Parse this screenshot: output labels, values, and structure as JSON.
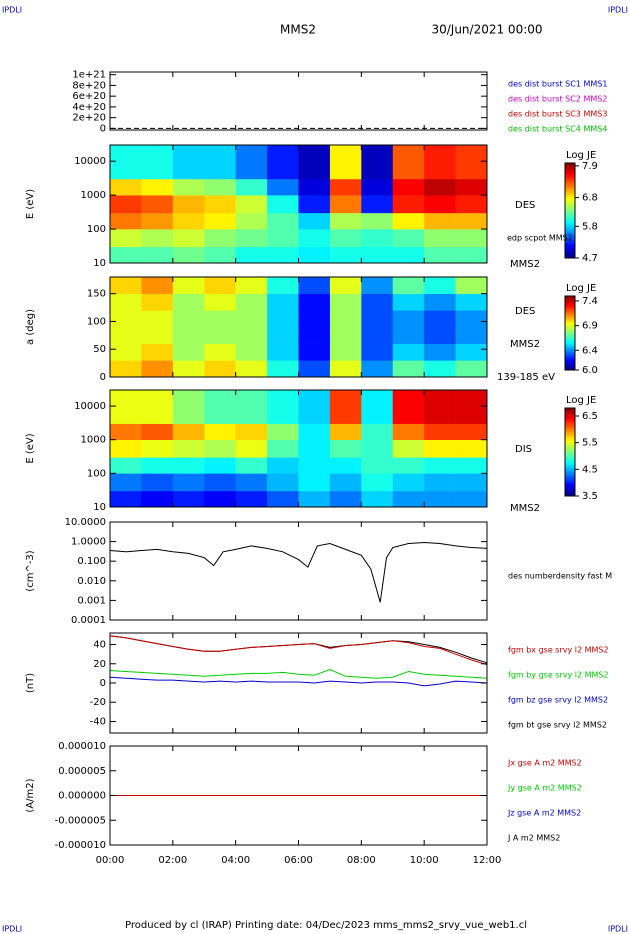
{
  "header": {
    "corner": "IPDLI",
    "title": "MMS2",
    "date": "30/Jun/2021 00:00"
  },
  "footer": "Produced by cl (IRAP)   Printing date: 04/Dec/2023   mms_mms2_srvy_vue_web1.cl",
  "chart_data": [
    {
      "type": "line",
      "ylim": [
        -3e+19,
        1.05e+21
      ],
      "yticks": [
        0,
        {
          "value": 2e+20,
          "label": "2e+20"
        },
        {
          "value": 4e+20,
          "label": "4e+20"
        },
        {
          "value": 6e+20,
          "label": "6e+20"
        },
        {
          "value": 8e+20,
          "label": "8e+20"
        },
        {
          "value": 1e+21,
          "label": "1e+21"
        }
      ],
      "series": [
        {
          "name": "des dist burst SC1 MMS1",
          "color": "#0000cc"
        },
        {
          "name": "des dist burst SC2 MMS2",
          "color": "#cc00cc"
        },
        {
          "name": "des dist burst SC3 MMS3",
          "color": "#cc0000"
        },
        {
          "name": "des dist burst SC4 MMS4",
          "color": "#00bb00"
        }
      ]
    },
    {
      "type": "heatmap",
      "y_label": "E (eV)",
      "log_y": true,
      "ylim": [
        10,
        30000
      ],
      "yticks": [
        10,
        100,
        1000,
        10000
      ],
      "x_edges": [
        0,
        1,
        2,
        3,
        4,
        5,
        6,
        7,
        8,
        9,
        10,
        11,
        12
      ],
      "y_edges": [
        10,
        30,
        100,
        300,
        1000,
        3000,
        30000
      ],
      "values": [
        [
          6.2,
          6.2,
          6.3,
          6.2,
          6.0,
          6.0,
          5.9,
          6.0,
          6.0,
          6.0,
          6.2,
          6.2
        ],
        [
          6.6,
          6.5,
          6.6,
          6.4,
          6.3,
          6.2,
          6.0,
          6.2,
          6.1,
          6.2,
          6.4,
          6.4
        ],
        [
          7.2,
          7.1,
          6.9,
          6.8,
          6.5,
          6.2,
          5.8,
          6.5,
          6.4,
          6.8,
          7.0,
          7.0
        ],
        [
          7.4,
          7.3,
          7.0,
          6.9,
          6.6,
          6.0,
          5.2,
          7.2,
          5.2,
          7.5,
          7.6,
          7.5
        ],
        [
          6.9,
          6.8,
          6.5,
          6.4,
          6.1,
          5.5,
          5.0,
          7.4,
          5.0,
          7.6,
          7.8,
          7.7
        ],
        [
          6.0,
          6.0,
          5.8,
          5.8,
          5.5,
          5.2,
          4.9,
          6.8,
          4.9,
          7.3,
          7.5,
          7.4
        ]
      ],
      "colorbar_title": "Log JE",
      "clim": [
        4.7,
        8.0
      ],
      "cticks": [
        4.7,
        5.8,
        6.8,
        7.9
      ],
      "annotations": [
        "DES",
        "edp scpot MMS2",
        "MMS2"
      ]
    },
    {
      "type": "heatmap",
      "y_label": "a (deg)",
      "ylim": [
        0,
        180
      ],
      "yticks": [
        0,
        50,
        100,
        150
      ],
      "x_edges": [
        0,
        1,
        2,
        3,
        4,
        5,
        6,
        7,
        8,
        9,
        10,
        11,
        12
      ],
      "y_edges": [
        0,
        30,
        60,
        90,
        120,
        150,
        180
      ],
      "values": [
        [
          7.0,
          7.1,
          6.9,
          7.0,
          6.9,
          6.6,
          6.3,
          6.9,
          6.4,
          6.7,
          6.6,
          6.7
        ],
        [
          6.9,
          7.0,
          6.8,
          6.9,
          6.8,
          6.5,
          6.2,
          6.8,
          6.3,
          6.5,
          6.4,
          6.5
        ],
        [
          6.9,
          6.9,
          6.8,
          6.8,
          6.8,
          6.5,
          6.2,
          6.8,
          6.3,
          6.4,
          6.3,
          6.4
        ],
        [
          6.9,
          6.9,
          6.8,
          6.8,
          6.8,
          6.5,
          6.2,
          6.8,
          6.3,
          6.4,
          6.3,
          6.4
        ],
        [
          6.9,
          7.0,
          6.8,
          6.9,
          6.8,
          6.5,
          6.2,
          6.8,
          6.3,
          6.5,
          6.4,
          6.5
        ],
        [
          7.0,
          7.1,
          6.9,
          7.0,
          6.9,
          6.6,
          6.3,
          6.9,
          6.4,
          6.7,
          6.6,
          6.8
        ]
      ],
      "colorbar_title": "Log JE",
      "clim": [
        6.0,
        7.5
      ],
      "cticks": [
        {
          "value": 6,
          "label": "6.0"
        },
        6.4,
        6.9,
        7.4
      ],
      "annotations": [
        "DES",
        "MMS2",
        "139-185 eV"
      ]
    },
    {
      "type": "heatmap",
      "y_label": "E (eV)",
      "log_y": true,
      "ylim": [
        10,
        30000
      ],
      "yticks": [
        10,
        100,
        1000,
        10000
      ],
      "x_edges": [
        0,
        1,
        2,
        3,
        4,
        5,
        6,
        7,
        8,
        9,
        10,
        11,
        12
      ],
      "y_edges": [
        10,
        30,
        100,
        300,
        1000,
        3000,
        30000
      ],
      "values": [
        [
          4.0,
          3.9,
          4.0,
          3.9,
          4.0,
          4.2,
          4.5,
          4.3,
          4.6,
          4.4,
          4.4,
          4.4
        ],
        [
          4.3,
          4.2,
          4.3,
          4.2,
          4.3,
          4.5,
          4.7,
          4.5,
          4.8,
          4.6,
          4.5,
          4.5
        ],
        [
          4.9,
          4.8,
          4.8,
          4.7,
          4.9,
          4.6,
          4.7,
          4.7,
          4.9,
          4.9,
          4.8,
          4.8
        ],
        [
          5.6,
          5.5,
          5.4,
          5.3,
          5.5,
          5.0,
          4.7,
          5.0,
          4.9,
          5.4,
          5.6,
          5.6
        ],
        [
          6.0,
          6.1,
          5.8,
          5.6,
          5.7,
          5.2,
          4.7,
          5.8,
          4.9,
          6.0,
          6.2,
          6.2
        ],
        [
          5.5,
          5.5,
          5.2,
          5.0,
          5.0,
          4.8,
          4.6,
          6.2,
          4.7,
          6.4,
          6.5,
          6.5
        ]
      ],
      "colorbar_title": "Log JE",
      "clim": [
        3.5,
        6.8
      ],
      "cticks": [
        3.5,
        4.5,
        5.5,
        6.5
      ],
      "annotations": [
        "DIS",
        "MMS2"
      ]
    },
    {
      "type": "line",
      "y_label": "(cm^-3)",
      "log_y": true,
      "ylim": [
        0.0001,
        10
      ],
      "yticks": [
        {
          "value": 0.0001,
          "label": "0.0001"
        },
        {
          "value": 0.001,
          "label": "0.001"
        },
        {
          "value": 0.01,
          "label": "0.010"
        },
        {
          "value": 0.1,
          "label": "0.100"
        },
        {
          "value": 1,
          "label": "1.0000"
        },
        {
          "value": 10,
          "label": "10.0000"
        }
      ],
      "x": [
        0,
        0.5,
        1,
        1.5,
        2,
        2.5,
        3,
        3.3,
        3.6,
        4,
        4.5,
        5,
        5.5,
        6,
        6.3,
        6.6,
        7,
        7.5,
        8,
        8.3,
        8.6,
        8.8,
        9,
        9.5,
        10,
        10.5,
        11,
        11.5,
        12
      ],
      "series": [
        {
          "color": "#000000",
          "values": [
            0.35,
            0.3,
            0.35,
            0.4,
            0.3,
            0.25,
            0.15,
            0.06,
            0.3,
            0.4,
            0.6,
            0.45,
            0.3,
            0.12,
            0.05,
            0.6,
            0.8,
            0.4,
            0.2,
            0.04,
            0.0008,
            0.15,
            0.5,
            0.8,
            0.9,
            0.8,
            0.6,
            0.5,
            0.45
          ]
        }
      ],
      "annotations": [
        "des numberdensity fast M"
      ]
    },
    {
      "type": "line",
      "y_label": "(nT)",
      "ylim": [
        -52,
        52
      ],
      "yticks": [
        -40,
        -20,
        0,
        20,
        40
      ],
      "x": [
        0,
        0.5,
        1,
        1.5,
        2,
        2.5,
        3,
        3.5,
        4,
        4.5,
        5,
        5.5,
        6,
        6.5,
        7,
        7.5,
        8,
        8.5,
        9,
        9.5,
        10,
        10.5,
        11,
        11.5,
        12
      ],
      "series": [
        {
          "name": "fgm bx gse srvy l2 MMS2",
          "color": "#cc0000",
          "values": [
            49,
            47,
            44,
            41,
            38,
            35,
            33,
            33,
            35,
            37,
            38,
            39,
            40,
            41,
            36,
            39,
            40,
            42,
            44,
            42,
            38,
            36,
            30,
            24,
            19
          ]
        },
        {
          "name": "fgm by gse srvy l2 MMS2",
          "color": "#00cc00",
          "values": [
            13,
            12,
            11,
            10,
            9,
            8,
            7,
            8,
            9,
            10,
            10,
            11,
            9,
            8,
            14,
            7,
            6,
            5,
            6,
            12,
            9,
            8,
            7,
            6,
            5
          ]
        },
        {
          "name": "fgm bz gse srvy l2 MMS2",
          "color": "#0000cc",
          "values": [
            6,
            5,
            4,
            3,
            3,
            2,
            1,
            2,
            1,
            2,
            1,
            1,
            1,
            0,
            2,
            1,
            0,
            1,
            1,
            0,
            -3,
            -1,
            2,
            1,
            0
          ]
        },
        {
          "name": "fgm bt gse srvy l2 MMS2",
          "color": "#000000",
          "values": [
            49,
            47,
            44,
            41,
            38,
            35,
            33,
            33,
            35,
            37,
            38,
            39,
            40,
            41,
            37,
            39,
            40,
            42,
            44,
            43,
            40,
            37,
            32,
            26,
            21
          ]
        }
      ]
    },
    {
      "type": "line",
      "y_label": "(A/m2)",
      "ylim": [
        -1e-05,
        1e-05
      ],
      "yticks": [
        {
          "value": -1e-05,
          "label": "-0.000010"
        },
        {
          "value": -5e-06,
          "label": "-0.000005"
        },
        {
          "value": 0,
          "label": "0.000000"
        },
        {
          "value": 5e-06,
          "label": "0.000005"
        },
        {
          "value": 1e-05,
          "label": "0.000010"
        }
      ],
      "x": [
        0,
        6,
        12
      ],
      "xlim": [
        0,
        12
      ],
      "xticks": [
        {
          "value": 0,
          "label": "00:00"
        },
        {
          "value": 2,
          "label": "02:00"
        },
        {
          "value": 4,
          "label": "04:00"
        },
        {
          "value": 6,
          "label": "06:00"
        },
        {
          "value": 8,
          "label": "08:00"
        },
        {
          "value": 10,
          "label": "10:00"
        },
        {
          "value": 12,
          "label": "12:00"
        }
      ],
      "series": [
        {
          "name": "Jx gse A m2 MMS2",
          "color": "#cc0000",
          "values": [
            0,
            0,
            0
          ]
        },
        {
          "name": "Jy gse A m2 MMS2",
          "color": "#00cc00",
          "values": [
            0,
            0,
            0
          ]
        },
        {
          "name": "Jz gse A m2 MMS2",
          "color": "#0000cc",
          "values": [
            0,
            0,
            0
          ]
        },
        {
          "name": "J A m2 MMS2",
          "color": "#000000",
          "values": [
            0,
            0,
            0
          ]
        }
      ]
    }
  ]
}
